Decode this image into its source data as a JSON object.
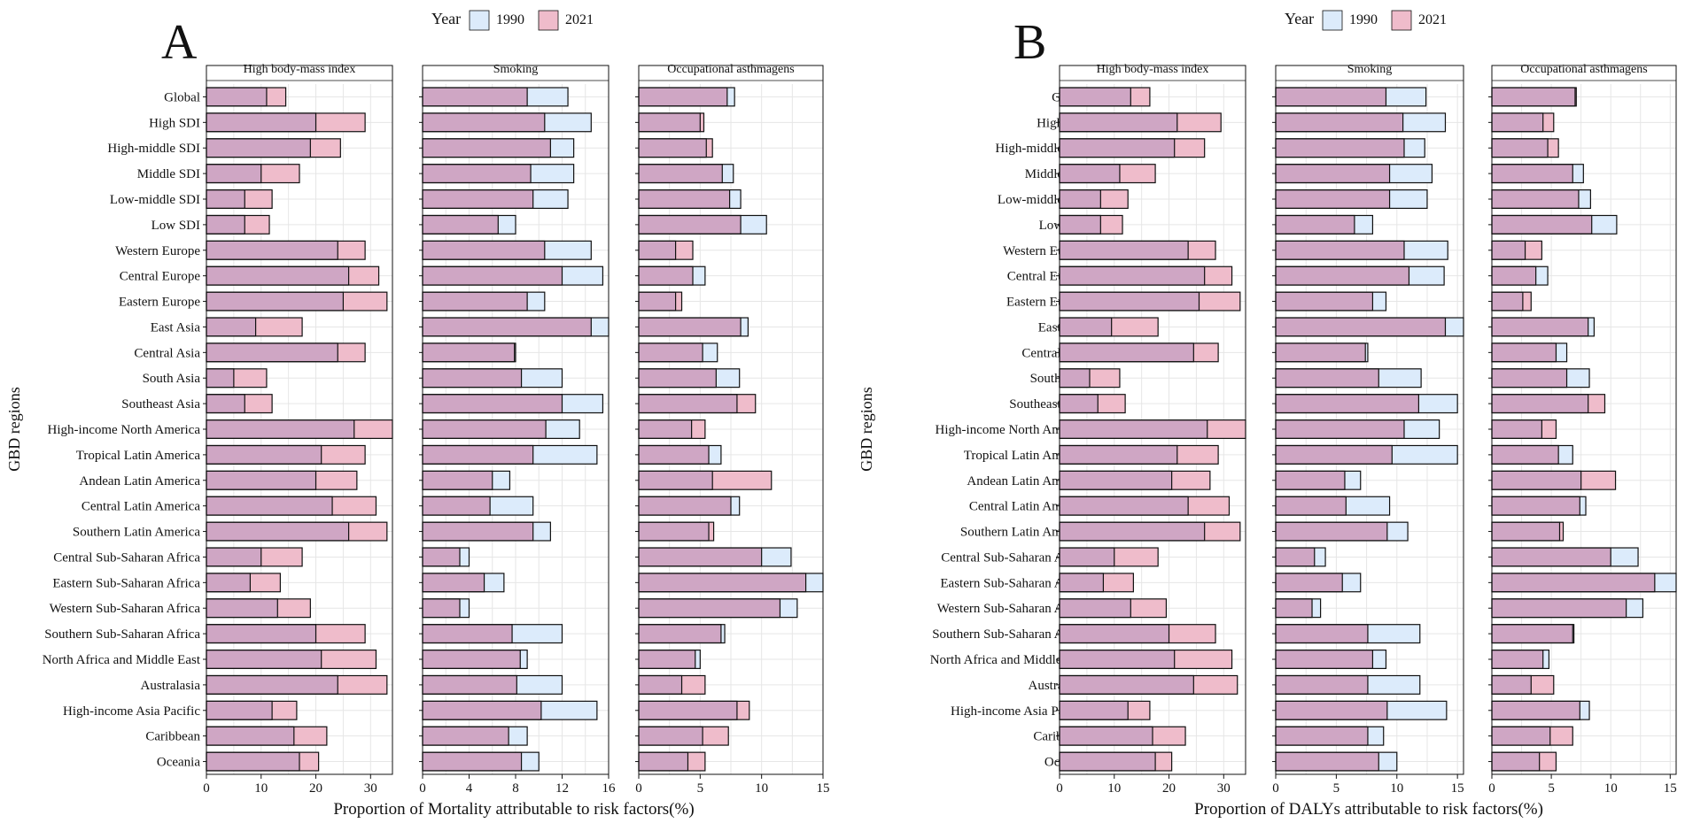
{
  "legend": {
    "title": "Year",
    "items": [
      "1990",
      "2021"
    ]
  },
  "colors": {
    "y1990": "#dcebfb",
    "y2021": "#efbccb",
    "overlap": "#cfa6c4",
    "stroke": "#111111",
    "grid": "#e6e6e6",
    "background": "#ffffff"
  },
  "regions": [
    "Global",
    "High SDI",
    "High-middle SDI",
    "Middle SDI",
    "Low-middle SDI",
    "Low SDI",
    "Western Europe",
    "Central Europe",
    "Eastern Europe",
    "East Asia",
    "Central Asia",
    "South Asia",
    "Southeast Asia",
    "High-income North America",
    "Tropical Latin America",
    "Andean Latin America",
    "Central Latin America",
    "Southern Latin America",
    "Central Sub-Saharan Africa",
    "Eastern Sub-Saharan Africa",
    "Western Sub-Saharan Africa",
    "Southern Sub-Saharan Africa",
    "North Africa and Middle East",
    "Australasia",
    "High-income Asia Pacific",
    "Caribbean",
    "Oceania"
  ],
  "chart_data": [
    {
      "type": "bar",
      "panel_label": "A",
      "ylabel": "GBD regions",
      "xlabel": "Proportion of  Mortality attributable to risk factors(%)",
      "facets": [
        {
          "title": "High body-mass index",
          "xlim": [
            0,
            34
          ],
          "ticks": [
            0,
            10,
            20,
            30
          ],
          "v1990": [
            11,
            20,
            19,
            10,
            7,
            7,
            24,
            26,
            25,
            9,
            24,
            5,
            7,
            27,
            21,
            20,
            23,
            26,
            10,
            8,
            13,
            20,
            21,
            24,
            12,
            16,
            17
          ],
          "v2021": [
            14.5,
            29,
            24.5,
            17,
            12,
            11.5,
            29,
            31.5,
            33,
            17.5,
            29,
            11,
            12,
            34,
            29,
            27.5,
            31,
            33,
            17.5,
            13.5,
            19,
            29,
            31,
            33,
            16.5,
            22,
            20.5
          ]
        },
        {
          "title": "Smoking",
          "xlim": [
            0,
            16
          ],
          "ticks": [
            0,
            4,
            8,
            12,
            16
          ],
          "v1990": [
            12.5,
            14.5,
            13,
            13,
            12.5,
            8,
            14.5,
            15.5,
            10.5,
            16,
            8,
            12,
            15.5,
            13.5,
            15,
            7.5,
            9.5,
            11,
            4,
            7,
            4,
            12,
            9,
            12,
            15,
            9,
            10
          ],
          "v2021": [
            9,
            10.5,
            11,
            9.3,
            9.5,
            6.5,
            10.5,
            12,
            9,
            14.5,
            7.9,
            8.5,
            12,
            10.6,
            9.5,
            6,
            5.8,
            9.5,
            3.2,
            5.3,
            3.2,
            7.7,
            8.4,
            8.1,
            10.2,
            7.4,
            8.5
          ]
        },
        {
          "title": "Occupational asthmagens",
          "xlim": [
            0,
            15
          ],
          "ticks": [
            0,
            5,
            10,
            15
          ],
          "v1990": [
            7.8,
            5,
            5.5,
            7.7,
            8.3,
            10.4,
            3,
            5.4,
            3,
            8.9,
            6.4,
            8.2,
            8,
            4.3,
            6.7,
            6,
            8.2,
            5.7,
            12.4,
            15,
            12.9,
            7,
            5,
            3.5,
            8,
            5.2,
            4
          ],
          "v2021": [
            7.2,
            5.3,
            6,
            6.8,
            7.4,
            8.3,
            4.4,
            4.4,
            3.5,
            8.3,
            5.2,
            6.3,
            9.5,
            5.4,
            5.7,
            10.8,
            7.5,
            6.1,
            10,
            13.6,
            11.5,
            6.7,
            4.6,
            5.4,
            9,
            7.3,
            5.4
          ]
        }
      ]
    },
    {
      "type": "bar",
      "panel_label": "B",
      "ylabel": "GBD regions",
      "xlabel": "Proportion of  DALYs attributable to risk factors(%)",
      "facets": [
        {
          "title": "High body-mass index",
          "xlim": [
            0,
            34
          ],
          "ticks": [
            0,
            10,
            20,
            30
          ],
          "v1990": [
            13,
            21.5,
            21,
            11,
            7.5,
            7.5,
            23.5,
            26.5,
            25.5,
            9.5,
            24.5,
            5.5,
            7,
            27,
            21.5,
            20.5,
            23.5,
            26.5,
            10,
            8,
            13,
            20,
            21,
            24.5,
            12.5,
            17,
            17.5
          ],
          "v2021": [
            16.5,
            29.5,
            26.5,
            17.5,
            12.5,
            11.5,
            28.5,
            31.5,
            33,
            18,
            29,
            11,
            12,
            34,
            29,
            27.5,
            31,
            33,
            18,
            13.5,
            19.5,
            28.5,
            31.5,
            32.5,
            16.5,
            23,
            20.5
          ]
        },
        {
          "title": "Smoking",
          "xlim": [
            0,
            15.5
          ],
          "ticks": [
            0,
            5,
            10,
            15
          ],
          "v1990": [
            12.4,
            14,
            12.3,
            12.9,
            12.5,
            8,
            14.2,
            13.9,
            9.1,
            15.5,
            7.6,
            12,
            15,
            13.5,
            15,
            7,
            9.4,
            10.9,
            4.1,
            7,
            3.7,
            11.9,
            9.1,
            11.9,
            14.1,
            8.9,
            10
          ],
          "v2021": [
            9.1,
            10.5,
            10.6,
            9.4,
            9.4,
            6.5,
            10.6,
            11,
            8,
            14,
            7.4,
            8.5,
            11.8,
            10.6,
            9.6,
            5.7,
            5.8,
            9.2,
            3.2,
            5.5,
            3,
            7.6,
            8,
            7.6,
            9.2,
            7.6,
            8.5
          ]
        },
        {
          "title": "Occupational asthmagens",
          "xlim": [
            0,
            15.5
          ],
          "ticks": [
            0,
            5,
            10,
            15
          ],
          "v1990": [
            7,
            4.3,
            4.7,
            7.7,
            8.3,
            10.5,
            2.8,
            4.7,
            2.6,
            8.6,
            6.3,
            8.2,
            8.1,
            4.2,
            6.8,
            7.5,
            7.9,
            5.7,
            12.3,
            15.5,
            12.7,
            6.9,
            4.8,
            3.3,
            8.2,
            4.9,
            4
          ],
          "v2021": [
            7.1,
            5.2,
            5.6,
            6.8,
            7.3,
            8.4,
            4.2,
            3.7,
            3.3,
            8.1,
            5.4,
            6.3,
            9.5,
            5.4,
            5.6,
            10.4,
            7.4,
            6,
            10,
            13.7,
            11.3,
            6.8,
            4.3,
            5.2,
            7.4,
            6.8,
            5.4
          ]
        }
      ]
    }
  ]
}
